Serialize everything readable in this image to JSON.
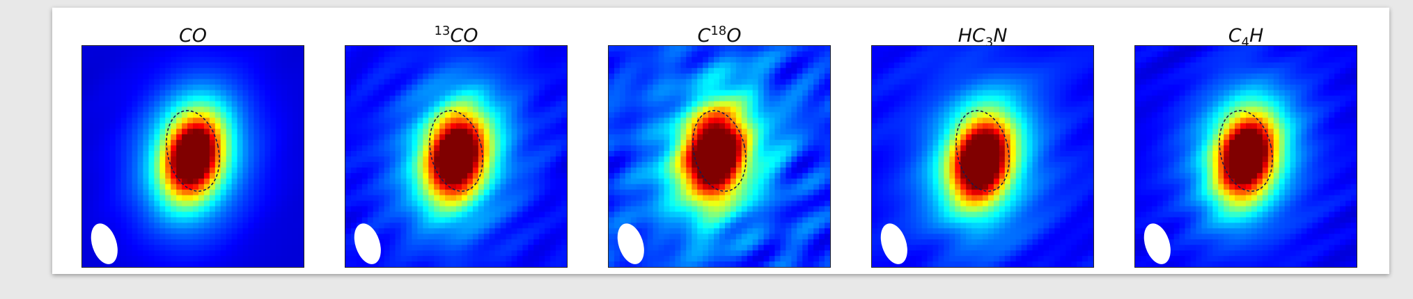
{
  "panels": [
    {
      "title_main": "CO",
      "title_sup": "",
      "title_sub": "",
      "title_tail": "",
      "mode": "smooth",
      "noise": 0.05,
      "peak": [
        0.0,
        0.0
      ]
    },
    {
      "title_main": "",
      "title_sup": "13",
      "title_sub": "",
      "title_tail": "CO",
      "mode": "mid",
      "noise": 0.35,
      "peak": [
        0.0,
        0.0
      ]
    },
    {
      "title_main": "C",
      "title_sup": "18",
      "title_sub": "",
      "title_tail": "O",
      "mode": "noisy",
      "noise": 0.7,
      "peak": [
        -0.02,
        0.0
      ]
    },
    {
      "title_main": "HC",
      "title_sup": "",
      "title_sub": "3",
      "title_tail": "N",
      "mode": "mid",
      "noise": 0.35,
      "peak": [
        0.0,
        0.02
      ]
    },
    {
      "title_main": "C",
      "title_sup": "",
      "title_sub": "4",
      "title_tail": "H",
      "mode": "mid",
      "noise": 0.25,
      "peak": [
        0.0,
        0.0
      ]
    }
  ],
  "colors": {
    "beam": "#ffffff",
    "contour": "#1a1a4a",
    "sheet_bg": "#ffffff",
    "page_bg": "#e8e8e8"
  }
}
